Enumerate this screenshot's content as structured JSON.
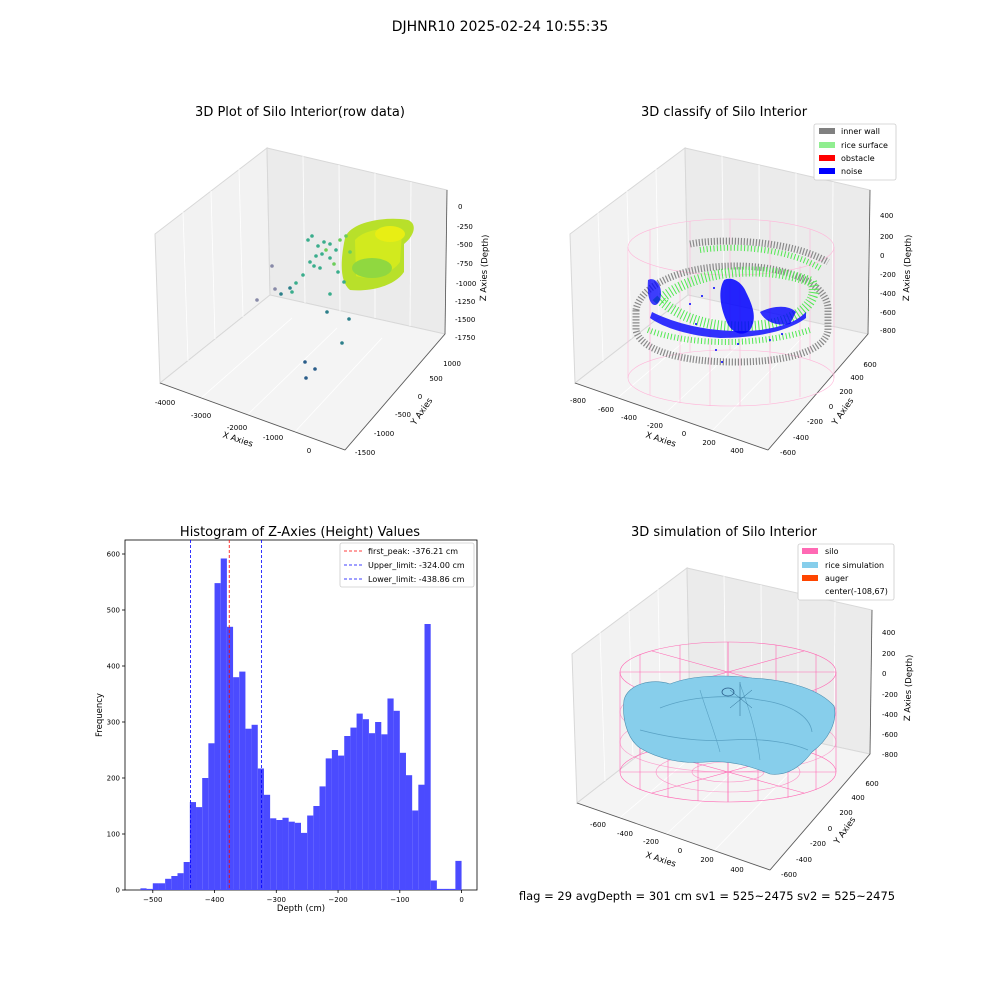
{
  "figure": {
    "suptitle": "DJHNR10 2025-02-24 10:55:35",
    "footer": "flag = 29  avgDepth = 301 cm  sv1 = 525~2475  sv2 = 525~2475"
  },
  "panels": {
    "raw": {
      "title": "3D Plot of Silo Interior(row data)",
      "xlabel": "X Axies",
      "ylabel": "Y Axies",
      "zlabel": "Z Axies (Depth)",
      "xticks": [
        "-4000",
        "-3000",
        "-2000",
        "-1000",
        "0"
      ],
      "yticks": [
        "-1500",
        "-1000",
        "-500",
        "0",
        "500",
        "1000"
      ],
      "zticks": [
        "0",
        "-250",
        "-500",
        "-750",
        "-1000",
        "-1250",
        "-1500",
        "-1750"
      ]
    },
    "classify": {
      "title": "3D classify of Silo Interior",
      "xlabel": "X Axies",
      "ylabel": "Y Axies",
      "zlabel": "Z Axies (Depth)",
      "xticks": [
        "-800",
        "-600",
        "-400",
        "-200",
        "0",
        "200",
        "400"
      ],
      "yticks": [
        "-600",
        "-400",
        "-200",
        "0",
        "200",
        "400",
        "600"
      ],
      "zticks": [
        "400",
        "200",
        "0",
        "-200",
        "-400",
        "-600",
        "-800"
      ],
      "legend": [
        {
          "label": "inner wall",
          "color": "#808080"
        },
        {
          "label": "rice surface",
          "color": "#90ee90"
        },
        {
          "label": "obstacle",
          "color": "#ff0000"
        },
        {
          "label": "noise",
          "color": "#0000ff"
        }
      ]
    },
    "simulation": {
      "title": "3D simulation of Silo Interior",
      "xlabel": "X Axies",
      "ylabel": "Y Axies",
      "zlabel": "Z Axies (Depth)",
      "xticks": [
        "-600",
        "-400",
        "-200",
        "0",
        "200",
        "400"
      ],
      "yticks": [
        "-600",
        "-400",
        "-200",
        "0",
        "200",
        "400",
        "600"
      ],
      "zticks": [
        "400",
        "200",
        "0",
        "-200",
        "-400",
        "-600",
        "-800"
      ],
      "legend": [
        {
          "label": "silo",
          "color": "#ff69b4"
        },
        {
          "label": "rice simulation",
          "color": "#87ceeb"
        },
        {
          "label": "auger",
          "color": "#ff4500"
        },
        {
          "label": "center(-108,67)",
          "color": ""
        }
      ]
    }
  },
  "chart_data": [
    {
      "type": "histogram",
      "title": "Histogram of Z-Axies (Height) Values",
      "xlabel": "Depth (cm)",
      "ylabel": "Frequency",
      "xlim": [
        -545,
        25
      ],
      "ylim": [
        0,
        625
      ],
      "bar_color": "#4b4bff",
      "bin_width": 10,
      "xticks": [
        -500,
        -400,
        -300,
        -200,
        -100,
        0
      ],
      "yticks": [
        0,
        100,
        200,
        300,
        400,
        500,
        600
      ],
      "bins": [
        {
          "x": -520,
          "v": 3
        },
        {
          "x": -510,
          "v": 2
        },
        {
          "x": -500,
          "v": 12
        },
        {
          "x": -490,
          "v": 12
        },
        {
          "x": -480,
          "v": 20
        },
        {
          "x": -470,
          "v": 25
        },
        {
          "x": -460,
          "v": 30
        },
        {
          "x": -450,
          "v": 50
        },
        {
          "x": -440,
          "v": 157
        },
        {
          "x": -430,
          "v": 148
        },
        {
          "x": -420,
          "v": 200
        },
        {
          "x": -410,
          "v": 262
        },
        {
          "x": -400,
          "v": 548
        },
        {
          "x": -390,
          "v": 592
        },
        {
          "x": -380,
          "v": 470
        },
        {
          "x": -370,
          "v": 380
        },
        {
          "x": -360,
          "v": 390
        },
        {
          "x": -350,
          "v": 288
        },
        {
          "x": -340,
          "v": 295
        },
        {
          "x": -330,
          "v": 217
        },
        {
          "x": -320,
          "v": 170
        },
        {
          "x": -310,
          "v": 128
        },
        {
          "x": -300,
          "v": 125
        },
        {
          "x": -290,
          "v": 129
        },
        {
          "x": -280,
          "v": 122
        },
        {
          "x": -270,
          "v": 120
        },
        {
          "x": -260,
          "v": 102
        },
        {
          "x": -250,
          "v": 133
        },
        {
          "x": -240,
          "v": 150
        },
        {
          "x": -230,
          "v": 185
        },
        {
          "x": -220,
          "v": 235
        },
        {
          "x": -210,
          "v": 250
        },
        {
          "x": -200,
          "v": 240
        },
        {
          "x": -190,
          "v": 275
        },
        {
          "x": -180,
          "v": 290
        },
        {
          "x": -170,
          "v": 315
        },
        {
          "x": -160,
          "v": 305
        },
        {
          "x": -150,
          "v": 280
        },
        {
          "x": -140,
          "v": 300
        },
        {
          "x": -130,
          "v": 278
        },
        {
          "x": -120,
          "v": 342
        },
        {
          "x": -110,
          "v": 320
        },
        {
          "x": -100,
          "v": 245
        },
        {
          "x": -90,
          "v": 205
        },
        {
          "x": -80,
          "v": 142
        },
        {
          "x": -70,
          "v": 188
        },
        {
          "x": -60,
          "v": 475
        },
        {
          "x": -50,
          "v": 17
        },
        {
          "x": -40,
          "v": 2
        },
        {
          "x": -30,
          "v": 2
        },
        {
          "x": -20,
          "v": 2
        },
        {
          "x": -10,
          "v": 52
        }
      ],
      "vlines": [
        {
          "label": "first_peak: -376.21 cm",
          "x": -376.21,
          "color": "#ff0000"
        },
        {
          "label": "Upper_limit: -324.00 cm",
          "x": -324.0,
          "color": "#0000ff"
        },
        {
          "label": "Lower_limit: -438.86 cm",
          "x": -438.86,
          "color": "#0000ff"
        }
      ]
    }
  ]
}
